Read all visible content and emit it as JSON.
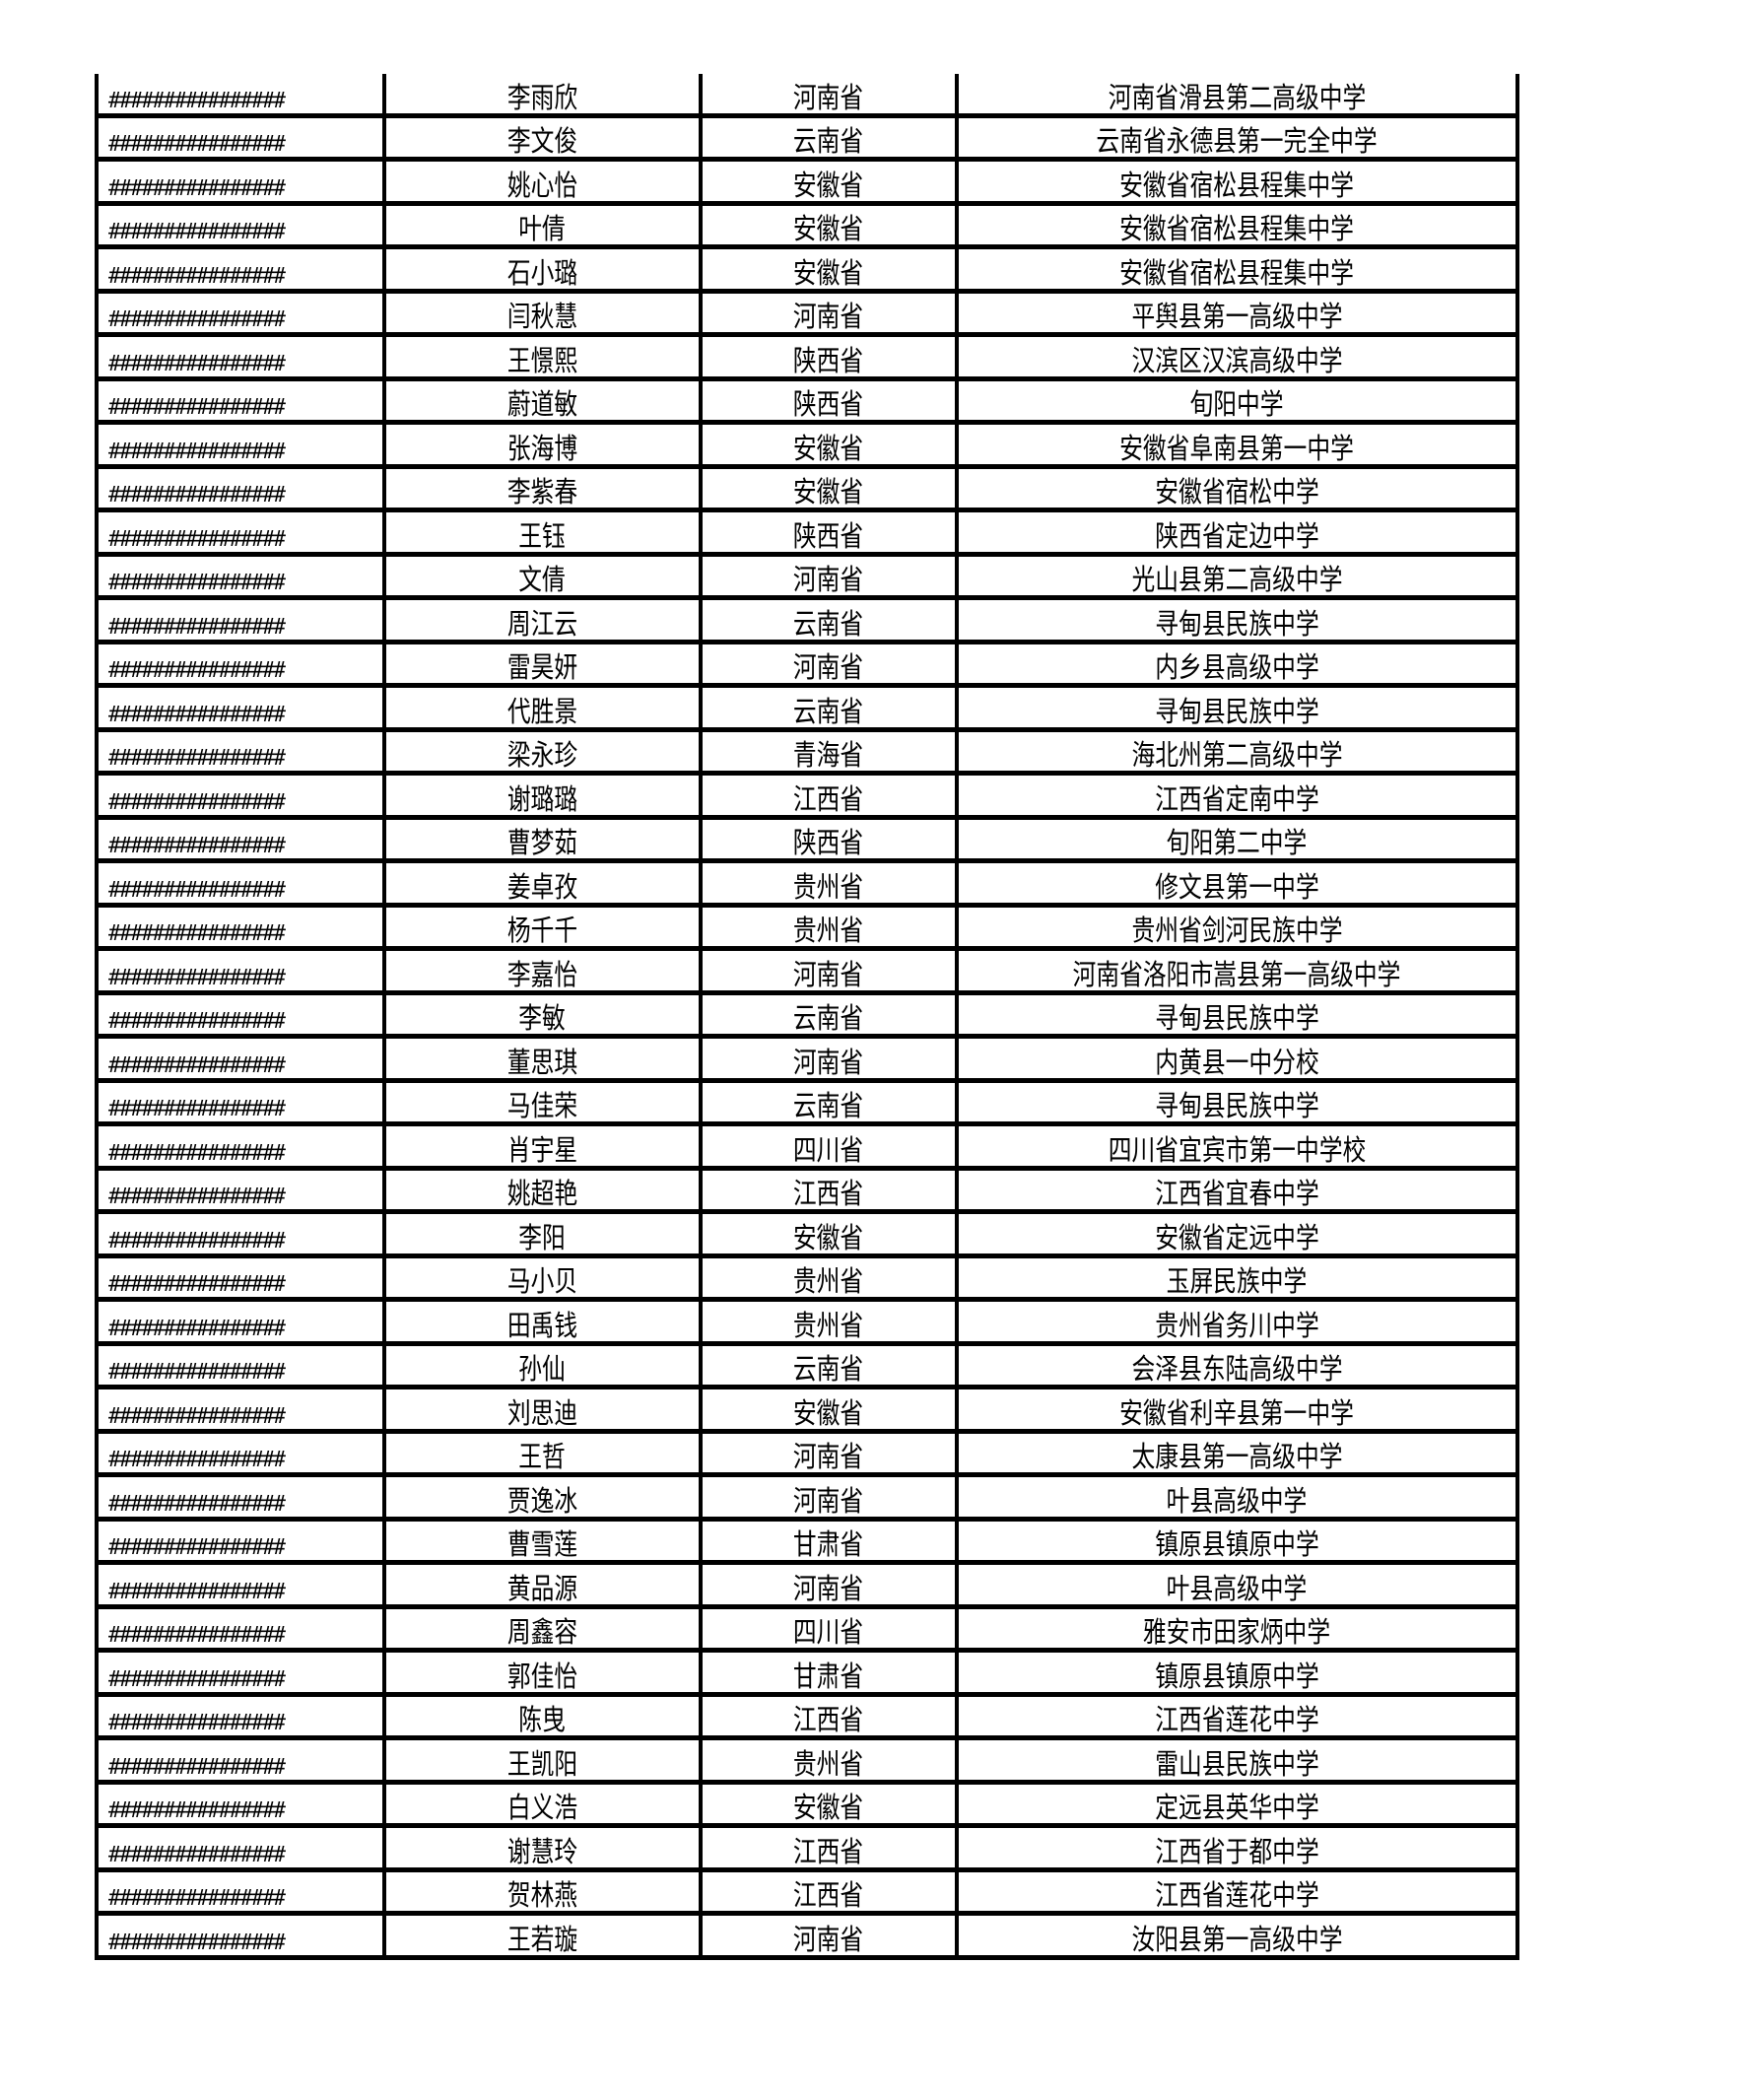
{
  "table": {
    "rows": [
      [
        "################",
        "李雨欣",
        "河南省",
        "河南省滑县第二高级中学"
      ],
      [
        "################",
        "李文俊",
        "云南省",
        "云南省永德县第一完全中学"
      ],
      [
        "################",
        "姚心怡",
        "安徽省",
        "安徽省宿松县程集中学"
      ],
      [
        "################",
        "叶倩",
        "安徽省",
        "安徽省宿松县程集中学"
      ],
      [
        "################",
        "石小璐",
        "安徽省",
        "安徽省宿松县程集中学"
      ],
      [
        "################",
        "闫秋慧",
        "河南省",
        "平舆县第一高级中学"
      ],
      [
        "################",
        "王憬熙",
        "陕西省",
        "汉滨区汉滨高级中学"
      ],
      [
        "################",
        "蔚道敏",
        "陕西省",
        "旬阳中学"
      ],
      [
        "################",
        "张海博",
        "安徽省",
        "安徽省阜南县第一中学"
      ],
      [
        "################",
        "李紫春",
        "安徽省",
        "安徽省宿松中学"
      ],
      [
        "################",
        "王钰",
        "陕西省",
        "陕西省定边中学"
      ],
      [
        "################",
        "文倩",
        "河南省",
        "光山县第二高级中学"
      ],
      [
        "################",
        "周江云",
        "云南省",
        "寻甸县民族中学"
      ],
      [
        "################",
        "雷昊妍",
        "河南省",
        "内乡县高级中学"
      ],
      [
        "################",
        "代胜景",
        "云南省",
        "寻甸县民族中学"
      ],
      [
        "################",
        "梁永珍",
        "青海省",
        "海北州第二高级中学"
      ],
      [
        "################",
        "谢璐璐",
        "江西省",
        "江西省定南中学"
      ],
      [
        "################",
        "曹梦茹",
        "陕西省",
        "旬阳第二中学"
      ],
      [
        "################",
        "姜卓孜",
        "贵州省",
        "修文县第一中学"
      ],
      [
        "################",
        "杨千千",
        "贵州省",
        "贵州省剑河民族中学"
      ],
      [
        "################",
        "李嘉怡",
        "河南省",
        "河南省洛阳市嵩县第一高级中学"
      ],
      [
        "################",
        "李敏",
        "云南省",
        "寻甸县民族中学"
      ],
      [
        "################",
        "董思琪",
        "河南省",
        "内黄县一中分校"
      ],
      [
        "################",
        "马佳荣",
        "云南省",
        "寻甸县民族中学"
      ],
      [
        "################",
        "肖宇星",
        "四川省",
        "四川省宜宾市第一中学校"
      ],
      [
        "################",
        "姚超艳",
        "江西省",
        "江西省宜春中学"
      ],
      [
        "################",
        "李阳",
        "安徽省",
        "安徽省定远中学"
      ],
      [
        "################",
        "马小贝",
        "贵州省",
        "玉屏民族中学"
      ],
      [
        "################",
        "田禹钱",
        "贵州省",
        "贵州省务川中学"
      ],
      [
        "################",
        "孙仙",
        "云南省",
        "会泽县东陆高级中学"
      ],
      [
        "################",
        "刘思迪",
        "安徽省",
        "安徽省利辛县第一中学"
      ],
      [
        "################",
        "王哲",
        "河南省",
        "太康县第一高级中学"
      ],
      [
        "################",
        "贾逸冰",
        "河南省",
        "叶县高级中学"
      ],
      [
        "################",
        "曹雪莲",
        "甘肃省",
        "镇原县镇原中学"
      ],
      [
        "################",
        "黄品源",
        "河南省",
        "叶县高级中学"
      ],
      [
        "################",
        "周鑫容",
        "四川省",
        "雅安市田家炳中学"
      ],
      [
        "################",
        "郭佳怡",
        "甘肃省",
        "镇原县镇原中学"
      ],
      [
        "################",
        "陈曳",
        "江西省",
        "江西省莲花中学"
      ],
      [
        "################",
        "王凯阳",
        "贵州省",
        "雷山县民族中学"
      ],
      [
        "################",
        "白义浩",
        "安徽省",
        "定远县英华中学"
      ],
      [
        "################",
        "谢慧玲",
        "江西省",
        "江西省于都中学"
      ],
      [
        "################",
        "贺林燕",
        "江西省",
        "江西省莲花中学"
      ],
      [
        "################",
        "王若璇",
        "河南省",
        "汝阳县第一高级中学"
      ]
    ]
  }
}
